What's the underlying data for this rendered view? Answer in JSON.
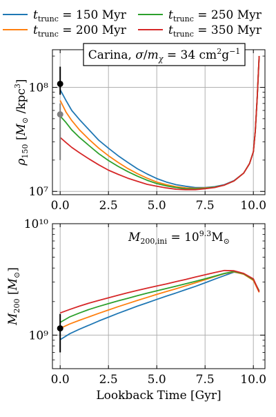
{
  "legend": {
    "entries": [
      {
        "label": "t_trunc = 150 Myr",
        "color": "#1f77b4"
      },
      {
        "label": "t_trunc = 200 Myr",
        "color": "#ff7f0e"
      },
      {
        "label": "t_trunc = 250 Myr",
        "color": "#2ca02c"
      },
      {
        "label": "t_trunc = 350 Myr",
        "color": "#d62728"
      }
    ]
  },
  "chart_data": [
    {
      "type": "line",
      "annotation": "Carina, σ/m_χ = 34 cm²g⁻¹",
      "xlabel": "",
      "ylabel": "ρ150 [M⊙ /kpc³]",
      "yscale": "log",
      "xlim": [
        -0.4,
        10.6
      ],
      "ylim": [
        9300000.0,
        230000000.0
      ],
      "xticks": [
        0.0,
        2.5,
        5.0,
        7.5,
        10.0
      ],
      "xtick_labels": [
        "0.0",
        "2.5",
        "5.0",
        "7.5",
        "10.0"
      ],
      "yticks": [
        10000000.0,
        100000000.0
      ],
      "ytick_labels": [
        "10⁷",
        "10⁸"
      ],
      "grid": true,
      "series": [
        {
          "name": "t_trunc = 150 Myr",
          "color": "#1f77b4",
          "x": [
            0.0,
            0.3,
            0.6,
            1.0,
            1.5,
            2.0,
            2.5,
            3.0,
            3.5,
            4.0,
            4.5,
            5.0,
            5.5,
            6.0,
            6.5,
            7.0,
            7.5,
            8.0,
            8.5,
            9.0,
            9.5,
            9.8,
            10.0,
            10.1,
            10.2,
            10.3
          ],
          "y": [
            95000000.0,
            75000000.0,
            60000000.0,
            49000000.0,
            39000000.0,
            31000000.0,
            26000000.0,
            22000000.0,
            19000000.0,
            16500000.0,
            14700000.0,
            13300000.0,
            12300000.0,
            11600000.0,
            11200000.0,
            10900000.0,
            10900000.0,
            11100000.0,
            11600000.0,
            12700000.0,
            15000000.0,
            18500000.0,
            24000000.0,
            38000000.0,
            80000000.0,
            200000000.0
          ]
        },
        {
          "name": "t_trunc = 200 Myr",
          "color": "#ff7f0e",
          "x": [
            0.0,
            0.3,
            0.6,
            1.0,
            1.5,
            2.0,
            2.5,
            3.0,
            3.5,
            4.0,
            4.5,
            5.0,
            5.5,
            6.0,
            6.5,
            7.0,
            7.5,
            8.0,
            8.5,
            9.0,
            9.5,
            9.8,
            10.0,
            10.1,
            10.2,
            10.3
          ],
          "y": [
            75000000.0,
            58000000.0,
            48000000.0,
            39000000.0,
            31500000.0,
            26000000.0,
            22000000.0,
            19000000.0,
            16600000.0,
            14800000.0,
            13400000.0,
            12300000.0,
            11600000.0,
            11100000.0,
            10800000.0,
            10700000.0,
            10800000.0,
            11000000.0,
            11500000.0,
            12600000.0,
            15000000.0,
            18500000.0,
            24000000.0,
            38000000.0,
            80000000.0,
            200000000.0
          ]
        },
        {
          "name": "t_trunc = 250 Myr",
          "color": "#2ca02c",
          "x": [
            0.0,
            0.3,
            0.6,
            1.0,
            1.5,
            2.0,
            2.5,
            3.0,
            3.5,
            4.0,
            4.5,
            5.0,
            5.5,
            6.0,
            6.5,
            7.0,
            7.5,
            8.0,
            8.5,
            9.0,
            9.5,
            9.8,
            10.0,
            10.1,
            10.2,
            10.3
          ],
          "y": [
            53000000.0,
            46000000.0,
            39000000.0,
            33000000.0,
            27500000.0,
            23000000.0,
            19800000.0,
            17400000.0,
            15500000.0,
            14000000.0,
            12800000.0,
            11900000.0,
            11300000.0,
            10900000.0,
            10600000.0,
            10600000.0,
            10700000.0,
            11000000.0,
            11500000.0,
            12600000.0,
            15000000.0,
            18500000.0,
            24000000.0,
            38000000.0,
            80000000.0,
            200000000.0
          ]
        },
        {
          "name": "t_trunc = 350 Myr",
          "color": "#d62728",
          "x": [
            0.0,
            0.3,
            0.6,
            1.0,
            1.5,
            2.0,
            2.5,
            3.0,
            3.5,
            4.0,
            4.5,
            5.0,
            5.5,
            6.0,
            6.5,
            7.0,
            7.5,
            8.0,
            8.5,
            9.0,
            9.5,
            9.8,
            10.0,
            10.1,
            10.2,
            10.3
          ],
          "y": [
            33000000.0,
            29500000.0,
            26500000.0,
            23500000.0,
            20500000.0,
            18000000.0,
            16000000.0,
            14600000.0,
            13400000.0,
            12500000.0,
            11700000.0,
            11200000.0,
            10800000.0,
            10500000.0,
            10400000.0,
            10400000.0,
            10600000.0,
            10900000.0,
            11500000.0,
            12600000.0,
            15000000.0,
            18500000.0,
            24000000.0,
            38000000.0,
            80000000.0,
            200000000.0
          ]
        }
      ],
      "observations": [
        {
          "x": 0.0,
          "y": 108000000.0,
          "yerr_low": 85000000.0,
          "yerr_high": 158000000.0,
          "color": "#000000"
        },
        {
          "x": 0.0,
          "y": 55000000.0,
          "yerr_low": 20000000.0,
          "yerr_high": 70000000.0,
          "color": "#808080"
        }
      ]
    },
    {
      "type": "line",
      "annotation": "M200,ini = 10^9.3 M⊙",
      "xlabel": "Lookback Time [Gyr]",
      "ylabel": "M200 [M⊙]",
      "yscale": "log",
      "xlim": [
        -0.4,
        10.6
      ],
      "ylim": [
        500000000.0,
        10000000000.0
      ],
      "xticks": [
        0.0,
        2.5,
        5.0,
        7.5,
        10.0
      ],
      "xtick_labels": [
        "0.0",
        "2.5",
        "5.0",
        "7.5",
        "10.0"
      ],
      "yticks": [
        1000000000.0,
        10000000000.0
      ],
      "ytick_labels": [
        "10⁹",
        "10¹⁰"
      ],
      "grid": true,
      "series": [
        {
          "name": "t_trunc = 150 Myr",
          "color": "#1f77b4",
          "x": [
            0.0,
            0.5,
            1.0,
            1.5,
            2.0,
            2.5,
            3.0,
            3.5,
            4.0,
            4.5,
            5.0,
            5.5,
            6.0,
            6.5,
            7.0,
            7.5,
            8.0,
            8.5,
            9.0,
            9.5,
            10.0,
            10.3
          ],
          "y": [
            910000000.0,
            1030000000.0,
            1130000000.0,
            1230000000.0,
            1340000000.0,
            1450000000.0,
            1570000000.0,
            1690000000.0,
            1820000000.0,
            1950000000.0,
            2090000000.0,
            2240000000.0,
            2390000000.0,
            2560000000.0,
            2740000000.0,
            2950000000.0,
            3180000000.0,
            3420000000.0,
            3680000000.0,
            3550000000.0,
            3150000000.0,
            2450000000.0
          ]
        },
        {
          "name": "t_trunc = 200 Myr",
          "color": "#ff7f0e",
          "x": [
            0.0,
            0.5,
            1.0,
            1.5,
            2.0,
            2.5,
            3.0,
            3.5,
            4.0,
            4.5,
            5.0,
            5.5,
            6.0,
            6.5,
            7.0,
            7.5,
            8.0,
            8.5,
            9.0,
            9.5,
            10.0,
            10.3
          ],
          "y": [
            1150000000.0,
            1260000000.0,
            1360000000.0,
            1460000000.0,
            1570000000.0,
            1680000000.0,
            1800000000.0,
            1920000000.0,
            2050000000.0,
            2180000000.0,
            2320000000.0,
            2460000000.0,
            2610000000.0,
            2770000000.0,
            2950000000.0,
            3140000000.0,
            3350000000.0,
            3560000000.0,
            3700000000.0,
            3520000000.0,
            3100000000.0,
            2420000000.0
          ]
        },
        {
          "name": "t_trunc = 250 Myr",
          "color": "#2ca02c",
          "x": [
            0.0,
            0.5,
            1.0,
            1.5,
            2.0,
            2.5,
            3.0,
            3.5,
            4.0,
            4.5,
            5.0,
            5.5,
            6.0,
            6.5,
            7.0,
            7.5,
            8.0,
            8.5,
            9.0,
            9.5,
            10.0,
            10.3
          ],
          "y": [
            1300000000.0,
            1460000000.0,
            1580000000.0,
            1700000000.0,
            1810000000.0,
            1920000000.0,
            2030000000.0,
            2140000000.0,
            2260000000.0,
            2380000000.0,
            2500000000.0,
            2620000000.0,
            2750000000.0,
            2890000000.0,
            3040000000.0,
            3200000000.0,
            3380000000.0,
            3580000000.0,
            3720000000.0,
            3550000000.0,
            3150000000.0,
            2500000000.0
          ]
        },
        {
          "name": "t_trunc = 350 Myr",
          "color": "#d62728",
          "x": [
            0.0,
            0.5,
            1.0,
            1.5,
            2.0,
            2.5,
            3.0,
            3.5,
            4.0,
            4.5,
            5.0,
            5.5,
            6.0,
            6.5,
            7.0,
            7.5,
            8.0,
            8.5,
            9.0,
            9.5,
            10.0,
            10.3
          ],
          "y": [
            1580000000.0,
            1700000000.0,
            1820000000.0,
            1940000000.0,
            2050000000.0,
            2160000000.0,
            2280000000.0,
            2400000000.0,
            2520000000.0,
            2640000000.0,
            2760000000.0,
            2880000000.0,
            3020000000.0,
            3160000000.0,
            3320000000.0,
            3480000000.0,
            3650000000.0,
            3800000000.0,
            3780000000.0,
            3580000000.0,
            3200000000.0,
            2450000000.0
          ]
        }
      ],
      "observations": [
        {
          "x": 0.0,
          "y": 1150000000.0,
          "yerr_low": 700000000.0,
          "yerr_high": 1550000000.0,
          "color": "#000000"
        }
      ]
    }
  ]
}
